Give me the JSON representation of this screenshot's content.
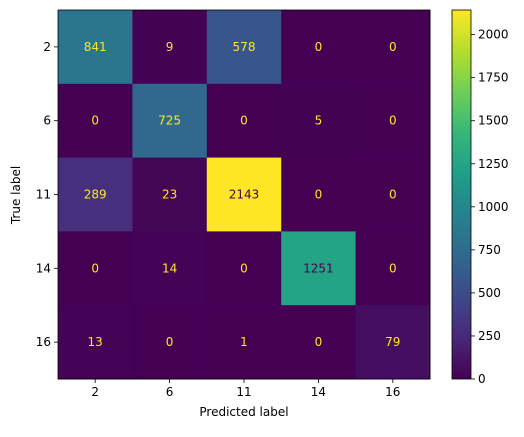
{
  "chart_data": {
    "type": "heatmap",
    "title": "",
    "xlabel": "Predicted label",
    "ylabel": "True label",
    "x_categories": [
      "2",
      "6",
      "11",
      "14",
      "16"
    ],
    "y_categories": [
      "2",
      "6",
      "11",
      "14",
      "16"
    ],
    "matrix": [
      [
        841,
        9,
        578,
        0,
        0
      ],
      [
        0,
        725,
        0,
        5,
        0
      ],
      [
        289,
        23,
        2143,
        0,
        0
      ],
      [
        0,
        14,
        0,
        1251,
        0
      ],
      [
        13,
        0,
        1,
        0,
        79
      ]
    ],
    "colormap": "viridis",
    "value_range": [
      0,
      2143
    ],
    "colorbar_ticks": [
      "0",
      "250",
      "500",
      "750",
      "1000",
      "1250",
      "1500",
      "1750",
      "2000"
    ],
    "colorbar_tick_values": [
      0,
      250,
      500,
      750,
      1000,
      1250,
      1500,
      1750,
      2000
    ],
    "colors": {
      "viridis": [
        "#440154",
        "#482878",
        "#3e4989",
        "#31688e",
        "#26828e",
        "#1f9e89",
        "#35b779",
        "#6ece58",
        "#b5de2b",
        "#fde725"
      ],
      "annotation_light": "#fde725",
      "annotation_dark": "#440154"
    }
  }
}
